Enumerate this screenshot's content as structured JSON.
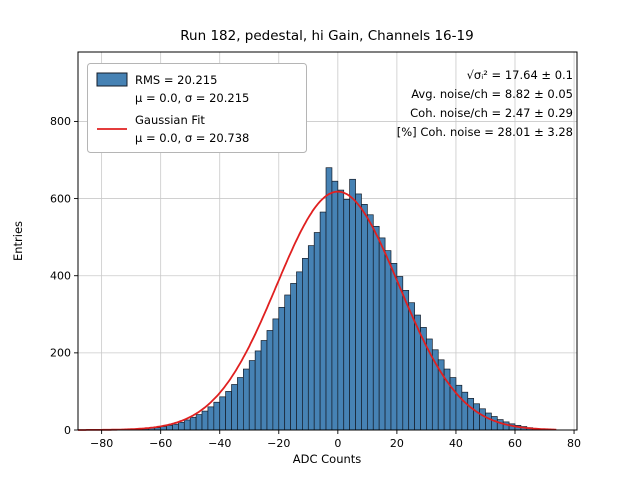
{
  "chart_data": {
    "type": "bar",
    "subtype": "histogram",
    "title": "Run 182, pedestal, hi Gain, Channels 16-19",
    "xlabel": "ADC Counts",
    "ylabel": "Entries",
    "xlim": [
      -88,
      81
    ],
    "ylim": [
      0,
      980
    ],
    "xticks": [
      -80,
      -60,
      -40,
      -20,
      0,
      20,
      40,
      60,
      80
    ],
    "yticks": [
      0,
      200,
      400,
      600,
      800
    ],
    "grid": true,
    "grid_color": "#c9c9c9",
    "legend_position": "upper left",
    "annotation_position": "upper right",
    "bin_width": 2,
    "bin_centers": [
      -69,
      -67,
      -65,
      -63,
      -61,
      -59,
      -57,
      -55,
      -53,
      -51,
      -49,
      -47,
      -45,
      -43,
      -41,
      -39,
      -37,
      -35,
      -33,
      -31,
      -29,
      -27,
      -25,
      -23,
      -21,
      -19,
      -17,
      -15,
      -13,
      -11,
      -9,
      -7,
      -5,
      -3,
      -1,
      1,
      3,
      5,
      7,
      9,
      11,
      13,
      15,
      17,
      19,
      21,
      23,
      25,
      27,
      29,
      31,
      33,
      35,
      37,
      39,
      41,
      43,
      45,
      47,
      49,
      51,
      53,
      55,
      57,
      59,
      61,
      63,
      65,
      67,
      69,
      71
    ],
    "counts": [
      1,
      2,
      3,
      5,
      6,
      9,
      12,
      15,
      20,
      26,
      33,
      40,
      49,
      60,
      72,
      86,
      100,
      118,
      136,
      158,
      180,
      205,
      232,
      258,
      288,
      318,
      350,
      380,
      410,
      445,
      478,
      512,
      565,
      680,
      645,
      622,
      598,
      650,
      612,
      585,
      558,
      528,
      498,
      465,
      432,
      398,
      362,
      330,
      298,
      266,
      236,
      208,
      182,
      158,
      136,
      116,
      98,
      82,
      68,
      55,
      44,
      35,
      27,
      21,
      16,
      12,
      9,
      6,
      4,
      3,
      2
    ],
    "histogram": {
      "color": "#4682b4",
      "edge_color": "#141c28",
      "rms": 20.215,
      "mu": 0.0,
      "sigma": 20.215,
      "legend_line1": "RMS = 20.215",
      "legend_line2": "μ = 0.0, σ = 20.215"
    },
    "fit": {
      "type": "gaussian",
      "mu": 0.0,
      "sigma": 20.738,
      "amplitude": 618,
      "x_range": [
        -88,
        74
      ],
      "color": "#e02020",
      "legend_line1": "Gaussian Fit",
      "legend_line2": "μ = 0.0, σ = 20.738"
    },
    "annotations": [
      "√σᵢ²  = 17.64 ± 0.1",
      "Avg. noise/ch = 8.82 ± 0.05",
      "Coh. noise/ch = 2.47 ± 0.29",
      "[%] Coh. noise = 28.01 ± 3.28"
    ]
  }
}
